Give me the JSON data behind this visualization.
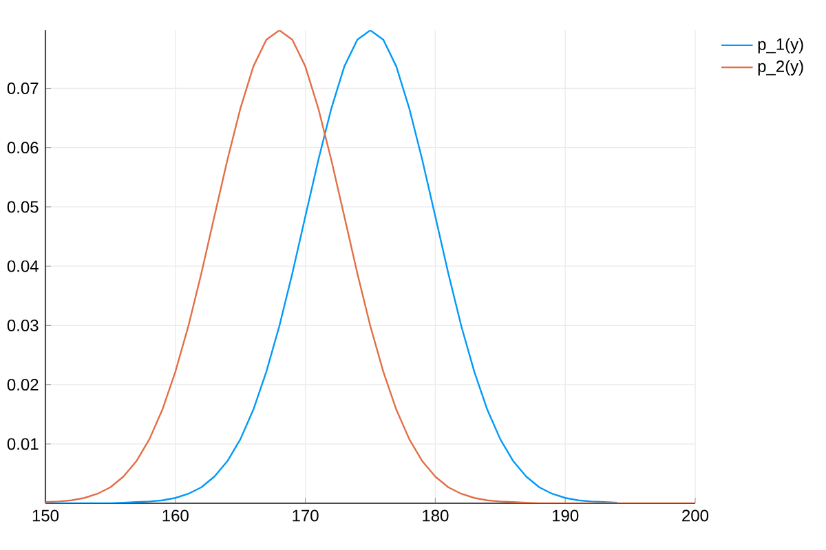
{
  "chart_data": {
    "type": "line",
    "x": [
      150,
      151,
      152,
      153,
      154,
      155,
      156,
      157,
      158,
      159,
      160,
      161,
      162,
      163,
      164,
      165,
      166,
      167,
      168,
      169,
      170,
      171,
      172,
      173,
      174,
      175,
      176,
      177,
      178,
      179,
      180,
      181,
      182,
      183,
      184,
      185,
      186,
      187,
      188,
      189,
      190,
      191,
      192,
      193,
      194,
      195,
      196,
      197,
      198,
      199,
      200
    ],
    "series": [
      {
        "name": "p_1(y)",
        "color": "#009af9",
        "values": [
          0,
          0,
          0,
          0,
          0,
          0,
          0.0001,
          0.0002,
          0.0003,
          0.0005,
          0.0009,
          0.0016,
          0.0027,
          0.0045,
          0.0071,
          0.0108,
          0.0158,
          0.0222,
          0.0299,
          0.0388,
          0.0484,
          0.0579,
          0.0666,
          0.0737,
          0.0782,
          0.0798,
          0.0782,
          0.0737,
          0.0666,
          0.0579,
          0.0484,
          0.0388,
          0.0299,
          0.0222,
          0.0158,
          0.0108,
          0.0071,
          0.0045,
          0.0027,
          0.0016,
          0.0009,
          0.0005,
          0.0003,
          0.0002,
          0.0001,
          null,
          null,
          null,
          null,
          null,
          null
        ]
      },
      {
        "name": "p_2(y)",
        "color": "#e26f46",
        "values": [
          0.0002,
          0.0003,
          0.0005,
          0.0009,
          0.0016,
          0.0027,
          0.0045,
          0.0071,
          0.0108,
          0.0158,
          0.0222,
          0.0299,
          0.0388,
          0.0484,
          0.0579,
          0.0666,
          0.0737,
          0.0782,
          0.0798,
          0.0782,
          0.0737,
          0.0666,
          0.0579,
          0.0484,
          0.0388,
          0.0299,
          0.0222,
          0.0158,
          0.0108,
          0.0071,
          0.0045,
          0.0027,
          0.0016,
          0.0009,
          0.0005,
          0.0003,
          0.0002,
          0.0001,
          0,
          0,
          0,
          0,
          0,
          0,
          0,
          0,
          0,
          0,
          0,
          0,
          0
        ]
      }
    ],
    "xlim": [
      150,
      200
    ],
    "ylim": [
      0,
      0.0798
    ],
    "xticks": [
      150,
      160,
      170,
      180,
      190,
      200
    ],
    "yticks": [
      0.01,
      0.02,
      0.03,
      0.04,
      0.05,
      0.06,
      0.07
    ],
    "grid": true,
    "legend": "top right",
    "marker": "none",
    "line_style": "solid"
  }
}
